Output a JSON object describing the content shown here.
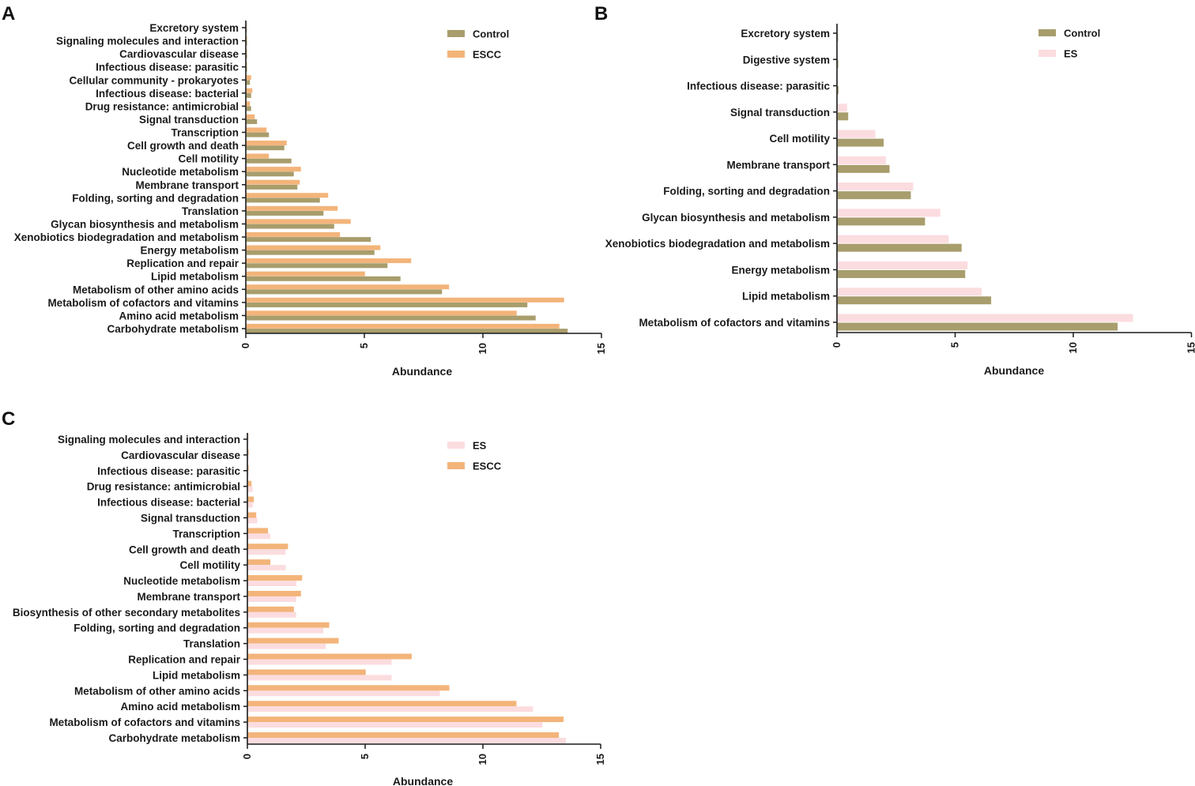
{
  "colors": {
    "Control": "#a89d6c",
    "ESCC": "#f3b47a",
    "ES": "#fbdcdf",
    "axis": "#1a1a1a"
  },
  "chart_data": [
    {
      "panel": "A",
      "type": "bar",
      "orientation": "horizontal",
      "xlabel": "Abundance",
      "xlim": [
        0,
        15
      ],
      "xticks": [
        0,
        5,
        10,
        15
      ],
      "legend": "top-right",
      "categories": [
        "Excretory system",
        "Signaling molecules and interaction",
        "Cardiovascular disease",
        "Infectious disease: parasitic",
        "Cellular community - prokaryotes",
        "Infectious disease: bacterial",
        "Drug resistance: antimicrobial",
        "Signal transduction",
        "Transcription",
        "Cell growth and death",
        "Cell motility",
        "Nucleotide metabolism",
        "Membrane transport",
        "Folding, sorting and degradation",
        "Translation",
        "Glycan biosynthesis and metabolism",
        "Xenobiotics biodegradation and metabolism",
        "Energy metabolism",
        "Replication and repair",
        "Lipid metabolism",
        "Metabolism of other amino acids",
        "Metabolism of cofactors and vitamins",
        "Amino acid metabolism",
        "Carbohydrate metabolism"
      ],
      "series": [
        {
          "name": "Control",
          "values": [
            0.02,
            0.03,
            0.03,
            0.03,
            0.15,
            0.2,
            0.2,
            0.45,
            0.95,
            1.6,
            1.9,
            2.0,
            2.15,
            3.1,
            3.25,
            3.7,
            5.25,
            5.4,
            5.95,
            6.5,
            8.25,
            11.85,
            12.2,
            13.55
          ]
        },
        {
          "name": "ESCC",
          "values": [
            0.02,
            0.03,
            0.03,
            0.03,
            0.2,
            0.25,
            0.15,
            0.35,
            0.85,
            1.7,
            0.95,
            2.3,
            2.25,
            3.45,
            3.85,
            4.4,
            3.95,
            5.65,
            6.95,
            5.0,
            8.55,
            13.4,
            11.4,
            13.2
          ]
        }
      ]
    },
    {
      "panel": "B",
      "type": "bar",
      "orientation": "horizontal",
      "xlabel": "Abundance",
      "xlim": [
        0,
        15
      ],
      "xticks": [
        0,
        5,
        10,
        15
      ],
      "legend": "top-right",
      "categories": [
        "Excretory system",
        "Digestive system",
        "Infectious disease: parasitic",
        "Signal transduction",
        "Cell motility",
        "Membrane transport",
        "Folding, sorting and degradation",
        "Glycan biosynthesis and metabolism",
        "Xenobiotics biodegradation and metabolism",
        "Energy metabolism",
        "Lipid metabolism",
        "Metabolism of cofactors and vitamins"
      ],
      "series": [
        {
          "name": "Control",
          "values": [
            0.02,
            0.03,
            0.04,
            0.45,
            1.95,
            2.2,
            3.1,
            3.7,
            5.25,
            5.4,
            6.5,
            11.85
          ]
        },
        {
          "name": "ES",
          "values": [
            0.02,
            0.02,
            0.03,
            0.4,
            1.6,
            2.05,
            3.2,
            4.35,
            4.7,
            5.5,
            6.1,
            12.5
          ]
        }
      ]
    },
    {
      "panel": "C",
      "type": "bar",
      "orientation": "horizontal",
      "xlabel": "Abundance",
      "xlim": [
        0,
        15
      ],
      "xticks": [
        0,
        5,
        10,
        15
      ],
      "legend": "top-right",
      "categories": [
        "Signaling molecules and interaction",
        "Cardiovascular disease",
        "Infectious disease: parasitic",
        "Drug resistance: antimicrobial",
        "Infectious disease: bacterial",
        "Signal transduction",
        "Transcription",
        "Cell growth and death",
        "Cell motility",
        "Nucleotide metabolism",
        "Membrane transport",
        "Biosynthesis of other secondary metabolites",
        "Folding, sorting and degradation",
        "Translation",
        "Replication and repair",
        "Lipid metabolism",
        "Metabolism of other amino acids",
        "Amino acid metabolism",
        "Metabolism of cofactors and vitamins",
        "Carbohydrate metabolism"
      ],
      "series": [
        {
          "name": "ES",
          "values": [
            0.02,
            0.03,
            0.03,
            0.2,
            0.2,
            0.4,
            0.95,
            1.6,
            1.6,
            2.05,
            2.05,
            2.05,
            3.2,
            3.3,
            6.1,
            6.1,
            8.15,
            12.1,
            12.5,
            13.5
          ]
        },
        {
          "name": "ESCC",
          "values": [
            0.02,
            0.03,
            0.03,
            0.15,
            0.25,
            0.35,
            0.85,
            1.7,
            0.95,
            2.3,
            2.25,
            1.95,
            3.45,
            3.85,
            6.95,
            5.0,
            8.55,
            11.4,
            13.4,
            13.2
          ]
        }
      ]
    }
  ]
}
